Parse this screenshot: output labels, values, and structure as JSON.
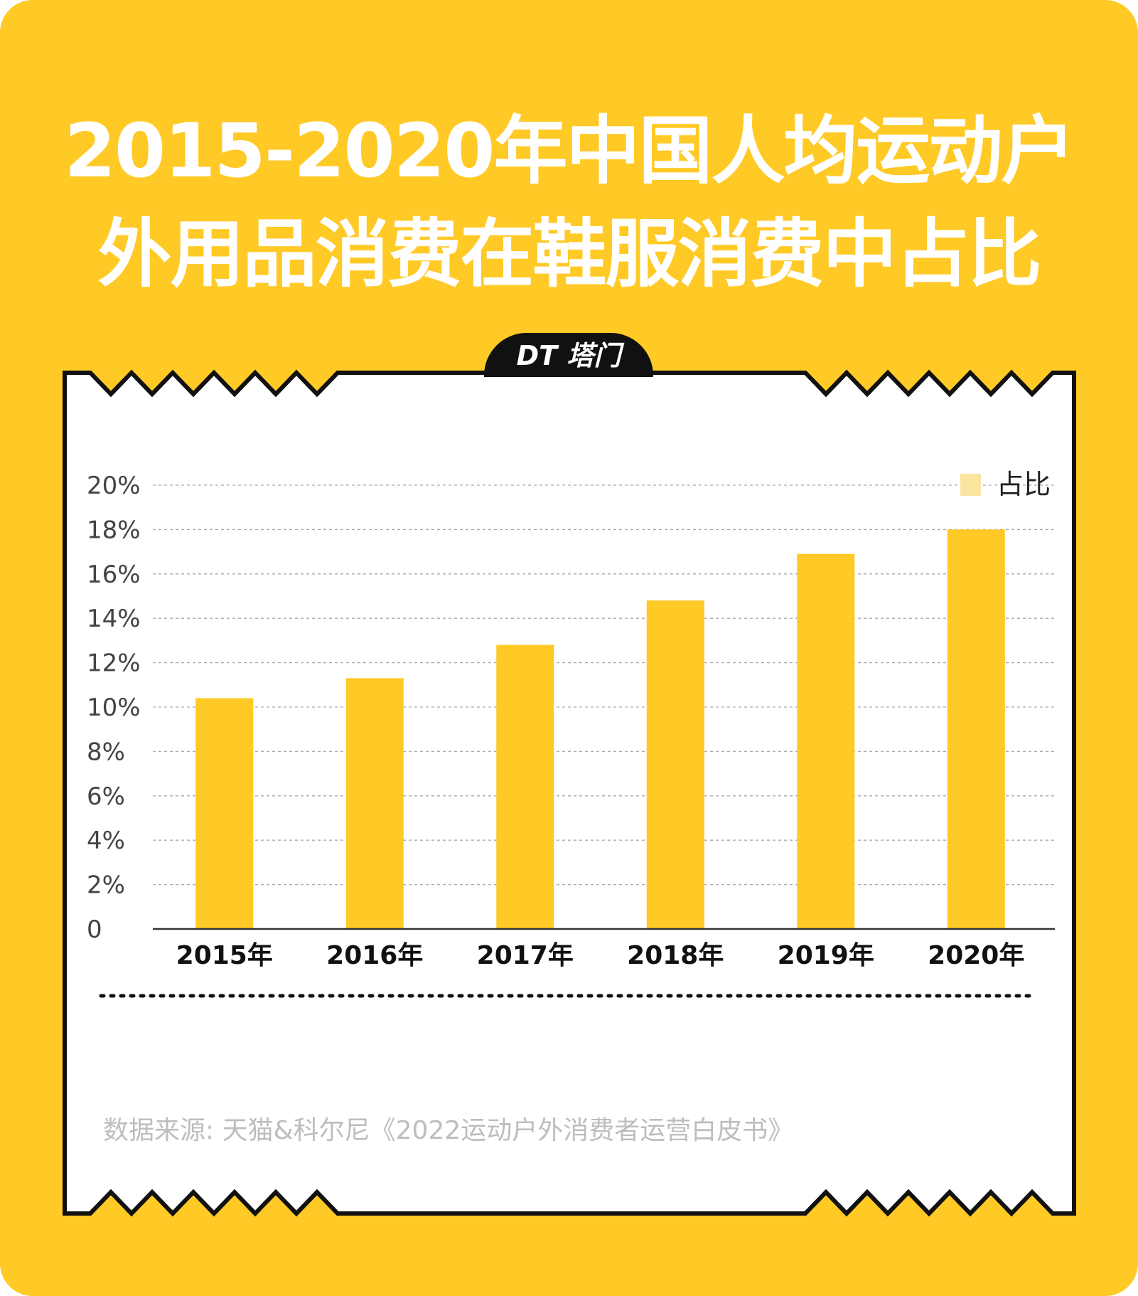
{
  "title": {
    "line1": "2015-2020年中国人均运动户",
    "line2": "外用品消费在鞋服消费中占比"
  },
  "badge": "DT 塔门",
  "source": "数据来源: 天猫&科尔尼《2022运动户外消费者运营白皮书》",
  "colors": {
    "background": "#FFC926",
    "bar": "#FFC926",
    "legend": "#FBE3A0",
    "border": "#111111"
  },
  "chart_data": {
    "type": "bar",
    "categories": [
      "2015年",
      "2016年",
      "2017年",
      "2018年",
      "2019年",
      "2020年"
    ],
    "series": [
      {
        "name": "占比",
        "values": [
          10.4,
          11.3,
          12.8,
          14.8,
          16.9,
          18.0
        ]
      }
    ],
    "yticks": [
      "0",
      "2%",
      "4%",
      "6%",
      "8%",
      "10%",
      "12%",
      "14%",
      "16%",
      "18%",
      "20%"
    ],
    "ylim": [
      0,
      20
    ],
    "yunit": "%",
    "grid": true,
    "legend": "top-right"
  }
}
